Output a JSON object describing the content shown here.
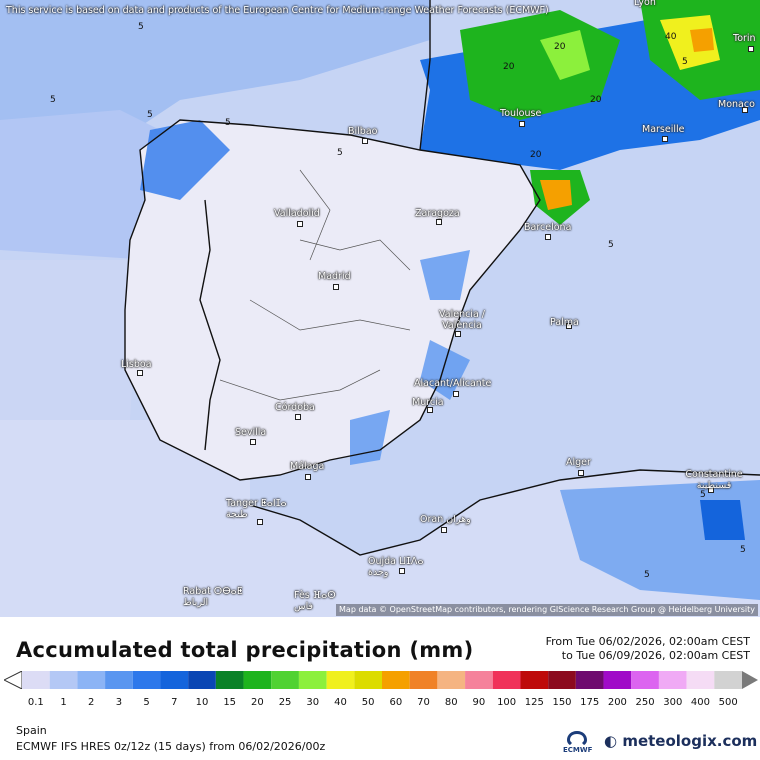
{
  "banner": "This service is based on data and products of the European Centre for Medium-range Weather Forecasts (ECMWF)",
  "attribution": "Map data © OpenStreetMap contributors, rendering GIScience Research Group @ Heidelberg University",
  "title": "Accumulated total precipitation (mm)",
  "period": {
    "from": "From Tue 06/02/2026, 02:00am CEST",
    "to": "to Tue 06/09/2026, 02:00am CEST"
  },
  "region": "Spain",
  "model": "ECMWF IFS HRES 0z/12z (15 days) from 06/02/2026/00z",
  "brand": "meteologix.com",
  "ecmwf_logo_text": "ECMWF",
  "cities": [
    {
      "name": "Bilbao"
    },
    {
      "name": "Toulouse"
    },
    {
      "name": "Marseille"
    },
    {
      "name": "Monaco"
    },
    {
      "name": "Torin"
    },
    {
      "name": "Lyon"
    },
    {
      "name": "Valladolid"
    },
    {
      "name": "Zaragoza"
    },
    {
      "name": "Barcelona"
    },
    {
      "name": "Madrid"
    },
    {
      "name": "Valencia / València"
    },
    {
      "name": "Palma"
    },
    {
      "name": "Lisboa"
    },
    {
      "name": "Alacant/Alicante"
    },
    {
      "name": "Murcia"
    },
    {
      "name": "Córdoba"
    },
    {
      "name": "Sevilla"
    },
    {
      "name": "Málaga"
    },
    {
      "name": "Alger"
    },
    {
      "name": "Constantine قسنطينة"
    },
    {
      "name": "Tanger ⵟⴰⵏⵊⴰ طنجة"
    },
    {
      "name": "Oran وهران"
    },
    {
      "name": "Oujda ⵡⵊⴷⴰ وجدة"
    },
    {
      "name": "Rabat ⵔⴱⴰⵟ الرباط"
    },
    {
      "name": "Fès ⴼⴰⵙ فاس"
    }
  ],
  "contour_labels": [
    "5",
    "5",
    "5",
    "5",
    "5",
    "5",
    "20",
    "20",
    "20",
    "40",
    "20",
    "5",
    "5",
    "5",
    "5"
  ],
  "legend": {
    "values": [
      "0.1",
      "1",
      "2",
      "3",
      "5",
      "7",
      "10",
      "15",
      "20",
      "25",
      "30",
      "40",
      "50",
      "60",
      "70",
      "80",
      "90",
      "100",
      "125",
      "150",
      "175",
      "200",
      "250",
      "300",
      "400",
      "500"
    ],
    "colors": [
      "#dcdcf5",
      "#b4c8f5",
      "#8cb4f5",
      "#5a96f0",
      "#2d78eb",
      "#1464dc",
      "#0a46b4",
      "#0a8228",
      "#1eb41e",
      "#50d232",
      "#8cf03c",
      "#f0f01e",
      "#dcdc00",
      "#f5a000",
      "#f08228",
      "#f5b482",
      "#f5829b",
      "#f0325a",
      "#be0a0a",
      "#8c0a1e",
      "#6e0a6e",
      "#a00ac8",
      "#dc64f0",
      "#f0aaf5",
      "#f5dcf5",
      "#d2d2d2"
    ]
  }
}
